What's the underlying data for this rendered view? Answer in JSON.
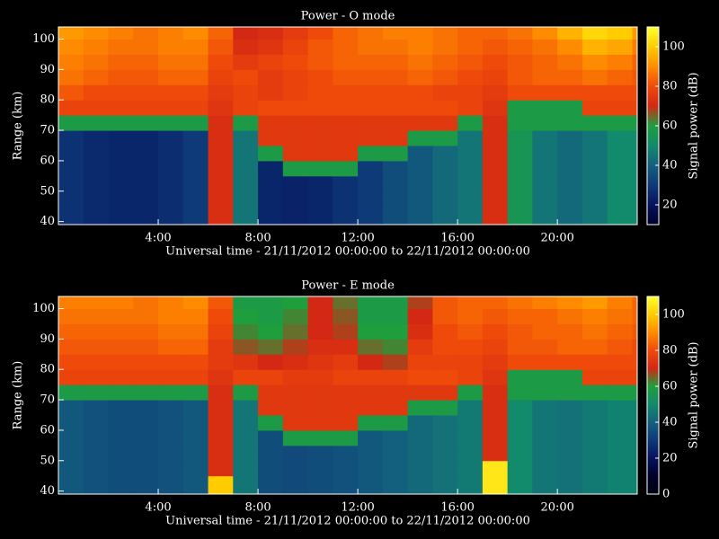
{
  "chart_data": [
    {
      "type": "heatmap",
      "title": "Power - O mode",
      "xlabel": "Universal time - 21/11/2012 00:00:00 to 22/11/2012 00:00:00",
      "ylabel": "Range (km)",
      "colorbar_label": "Signal power (dB)",
      "x_bins": [
        0,
        1,
        2,
        3,
        4,
        5,
        6,
        7,
        8,
        9,
        10,
        11,
        12,
        13,
        14,
        15,
        16,
        17,
        18,
        19,
        20,
        21,
        22,
        23,
        23.2
      ],
      "y_bins": [
        39,
        45,
        50,
        55,
        60,
        65,
        70,
        75,
        80,
        85,
        90,
        95,
        100,
        104
      ],
      "xlim": [
        0,
        23.2
      ],
      "ylim": [
        39,
        104
      ],
      "xticks": [
        {
          "value": 4,
          "label": "4:00"
        },
        {
          "value": 8,
          "label": "8:00"
        },
        {
          "value": 12,
          "label": "12:00"
        },
        {
          "value": 16,
          "label": "16:00"
        },
        {
          "value": 20,
          "label": "20:00"
        }
      ],
      "yticks": [
        40,
        50,
        60,
        70,
        80,
        90,
        100
      ],
      "clim": [
        10,
        110
      ],
      "cticks": [
        20,
        40,
        60,
        80,
        100
      ],
      "colormap": [
        "#00002a",
        "#06125e",
        "#0e3a78",
        "#13607e",
        "#128a6c",
        "#1e9e3c",
        "#d22814",
        "#f04a0a",
        "#ff8c00",
        "#ffcc00",
        "#ffff30"
      ],
      "values": [
        [
          28,
          26,
          25,
          25,
          27,
          30,
          72,
          45,
          25,
          24,
          25,
          28,
          30,
          35,
          38,
          42,
          45,
          72,
          55,
          45,
          42,
          45,
          50,
          50
        ],
        [
          28,
          26,
          25,
          25,
          27,
          30,
          72,
          45,
          25,
          24,
          25,
          28,
          30,
          35,
          38,
          42,
          45,
          72,
          55,
          45,
          42,
          45,
          50,
          50
        ],
        [
          28,
          26,
          25,
          25,
          27,
          30,
          72,
          45,
          25,
          24,
          25,
          28,
          30,
          35,
          38,
          42,
          45,
          72,
          55,
          45,
          42,
          45,
          50,
          50
        ],
        [
          28,
          26,
          25,
          25,
          27,
          30,
          72,
          45,
          25,
          58,
          58,
          58,
          30,
          35,
          38,
          42,
          45,
          72,
          55,
          45,
          42,
          45,
          50,
          50
        ],
        [
          28,
          26,
          25,
          25,
          27,
          30,
          72,
          45,
          58,
          75,
          75,
          75,
          58,
          58,
          38,
          42,
          45,
          72,
          55,
          45,
          42,
          45,
          50,
          50
        ],
        [
          28,
          26,
          25,
          25,
          27,
          30,
          72,
          45,
          75,
          75,
          75,
          75,
          75,
          75,
          58,
          58,
          45,
          72,
          55,
          45,
          42,
          45,
          50,
          50
        ],
        [
          58,
          58,
          58,
          58,
          58,
          58,
          72,
          58,
          75,
          75,
          75,
          75,
          75,
          75,
          75,
          75,
          58,
          72,
          58,
          58,
          58,
          58,
          58,
          58
        ],
        [
          78,
          78,
          78,
          78,
          78,
          78,
          74,
          78,
          80,
          80,
          80,
          80,
          80,
          80,
          80,
          80,
          78,
          74,
          58,
          58,
          58,
          78,
          78,
          78
        ],
        [
          82,
          80,
          80,
          80,
          80,
          80,
          76,
          78,
          76,
          78,
          80,
          80,
          80,
          80,
          80,
          78,
          78,
          76,
          80,
          80,
          80,
          80,
          80,
          80
        ],
        [
          86,
          84,
          82,
          82,
          84,
          84,
          78,
          80,
          76,
          78,
          80,
          82,
          82,
          82,
          84,
          82,
          80,
          78,
          82,
          84,
          84,
          86,
          84,
          82
        ],
        [
          88,
          86,
          84,
          84,
          86,
          86,
          80,
          76,
          78,
          80,
          82,
          84,
          84,
          84,
          86,
          84,
          82,
          80,
          82,
          84,
          86,
          90,
          88,
          84
        ],
        [
          90,
          88,
          86,
          86,
          88,
          88,
          82,
          72,
          74,
          78,
          82,
          84,
          86,
          86,
          88,
          86,
          84,
          82,
          84,
          86,
          90,
          96,
          94,
          88
        ],
        [
          92,
          90,
          88,
          86,
          88,
          90,
          84,
          70,
          72,
          76,
          80,
          84,
          86,
          88,
          88,
          86,
          84,
          84,
          86,
          90,
          96,
          102,
          100,
          92
        ]
      ]
    },
    {
      "type": "heatmap",
      "title": "Power - E mode",
      "xlabel": "Universal time - 21/11/2012 00:00:00 to 22/11/2012 00:00:00",
      "ylabel": "Range (km)",
      "colorbar_label": "Signal power (dB)",
      "x_bins": [
        0,
        1,
        2,
        3,
        4,
        5,
        6,
        7,
        8,
        9,
        10,
        11,
        12,
        13,
        14,
        15,
        16,
        17,
        18,
        19,
        20,
        21,
        22,
        23,
        23.2
      ],
      "y_bins": [
        39,
        45,
        50,
        55,
        60,
        65,
        70,
        75,
        80,
        85,
        90,
        95,
        100,
        104
      ],
      "xlim": [
        0,
        23.2
      ],
      "ylim": [
        39,
        104
      ],
      "xticks": [
        {
          "value": 4,
          "label": "4:00"
        },
        {
          "value": 8,
          "label": "8:00"
        },
        {
          "value": 12,
          "label": "12:00"
        },
        {
          "value": 16,
          "label": "16:00"
        },
        {
          "value": 20,
          "label": "20:00"
        }
      ],
      "yticks": [
        40,
        50,
        60,
        70,
        80,
        90,
        100
      ],
      "clim": [
        0,
        110
      ],
      "cticks": [
        0,
        20,
        40,
        60,
        80,
        100
      ],
      "colormap": [
        "#000010",
        "#00002a",
        "#06125e",
        "#0e3a78",
        "#13607e",
        "#128a6c",
        "#1e9e3c",
        "#d22814",
        "#f04a0a",
        "#ff8c00",
        "#ffcc00",
        "#ffff30"
      ],
      "values": [
        [
          38,
          36,
          35,
          35,
          36,
          38,
          100,
          45,
          35,
          34,
          35,
          36,
          38,
          40,
          42,
          44,
          46,
          105,
          50,
          45,
          44,
          46,
          48,
          48
        ],
        [
          38,
          36,
          35,
          35,
          36,
          38,
          72,
          45,
          35,
          34,
          35,
          36,
          38,
          40,
          42,
          44,
          46,
          105,
          50,
          45,
          44,
          46,
          48,
          48
        ],
        [
          38,
          36,
          35,
          35,
          36,
          38,
          72,
          45,
          35,
          34,
          35,
          36,
          38,
          40,
          42,
          44,
          46,
          72,
          50,
          45,
          44,
          46,
          48,
          48
        ],
        [
          38,
          36,
          35,
          35,
          36,
          38,
          72,
          45,
          35,
          58,
          58,
          58,
          38,
          40,
          42,
          44,
          46,
          72,
          50,
          45,
          44,
          46,
          48,
          48
        ],
        [
          38,
          36,
          35,
          35,
          36,
          38,
          72,
          45,
          58,
          75,
          75,
          75,
          58,
          58,
          42,
          44,
          46,
          72,
          50,
          45,
          44,
          46,
          48,
          48
        ],
        [
          38,
          36,
          35,
          35,
          36,
          38,
          72,
          45,
          75,
          75,
          75,
          75,
          75,
          75,
          58,
          58,
          46,
          72,
          50,
          45,
          44,
          46,
          48,
          48
        ],
        [
          58,
          58,
          58,
          58,
          58,
          58,
          72,
          58,
          75,
          75,
          75,
          75,
          75,
          75,
          75,
          75,
          58,
          72,
          58,
          58,
          58,
          58,
          58,
          58
        ],
        [
          78,
          78,
          78,
          78,
          78,
          78,
          74,
          78,
          78,
          76,
          76,
          78,
          78,
          78,
          80,
          80,
          78,
          74,
          58,
          58,
          58,
          78,
          78,
          78
        ],
        [
          80,
          80,
          80,
          80,
          80,
          80,
          76,
          74,
          70,
          72,
          74,
          76,
          70,
          68,
          78,
          78,
          78,
          76,
          80,
          80,
          80,
          80,
          80,
          80
        ],
        [
          82,
          82,
          82,
          82,
          84,
          84,
          76,
          66,
          64,
          68,
          72,
          72,
          64,
          62,
          76,
          80,
          80,
          78,
          82,
          82,
          84,
          84,
          82,
          80
        ],
        [
          84,
          84,
          84,
          84,
          86,
          86,
          78,
          62,
          60,
          64,
          70,
          68,
          60,
          60,
          72,
          80,
          82,
          80,
          82,
          84,
          84,
          86,
          84,
          82
        ],
        [
          86,
          86,
          86,
          86,
          88,
          88,
          80,
          60,
          58,
          62,
          70,
          66,
          58,
          58,
          70,
          82,
          84,
          82,
          84,
          84,
          86,
          88,
          86,
          84
        ],
        [
          88,
          88,
          88,
          86,
          88,
          90,
          82,
          58,
          58,
          60,
          70,
          64,
          58,
          58,
          68,
          82,
          84,
          84,
          86,
          88,
          90,
          92,
          88,
          84
        ]
      ]
    }
  ]
}
